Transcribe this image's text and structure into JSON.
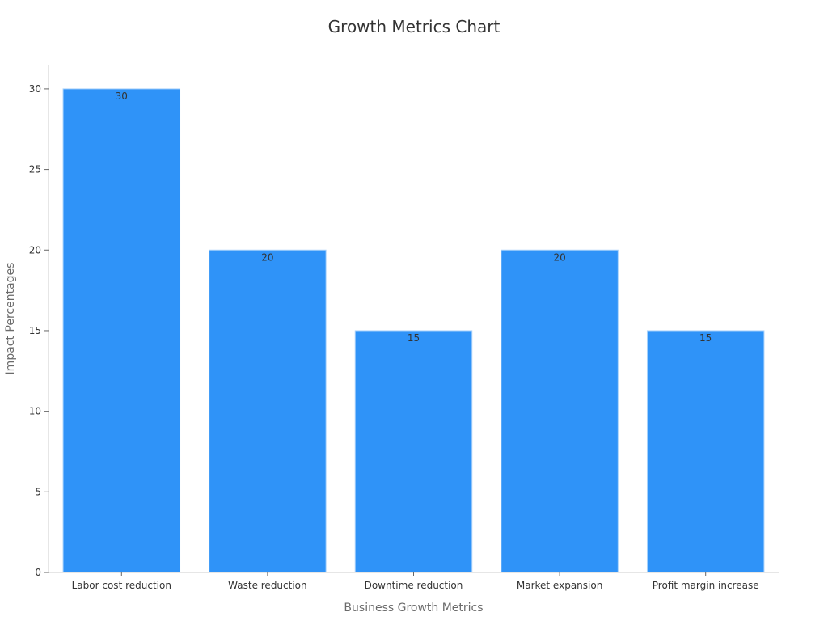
{
  "chart_data": {
    "type": "bar",
    "title": "Growth Metrics Chart",
    "xlabel": "Business Growth Metrics",
    "ylabel": "Impact Percentages",
    "categories": [
      "Labor cost reduction",
      "Waste reduction",
      "Downtime reduction",
      "Market expansion",
      "Profit margin increase"
    ],
    "values": [
      30,
      20,
      15,
      20,
      15
    ],
    "ylim": [
      0,
      31.5
    ],
    "yticks": [
      0,
      5,
      10,
      15,
      20,
      25,
      30
    ],
    "grid": false,
    "bar_color": "#2f93f8",
    "data_labels": true
  }
}
